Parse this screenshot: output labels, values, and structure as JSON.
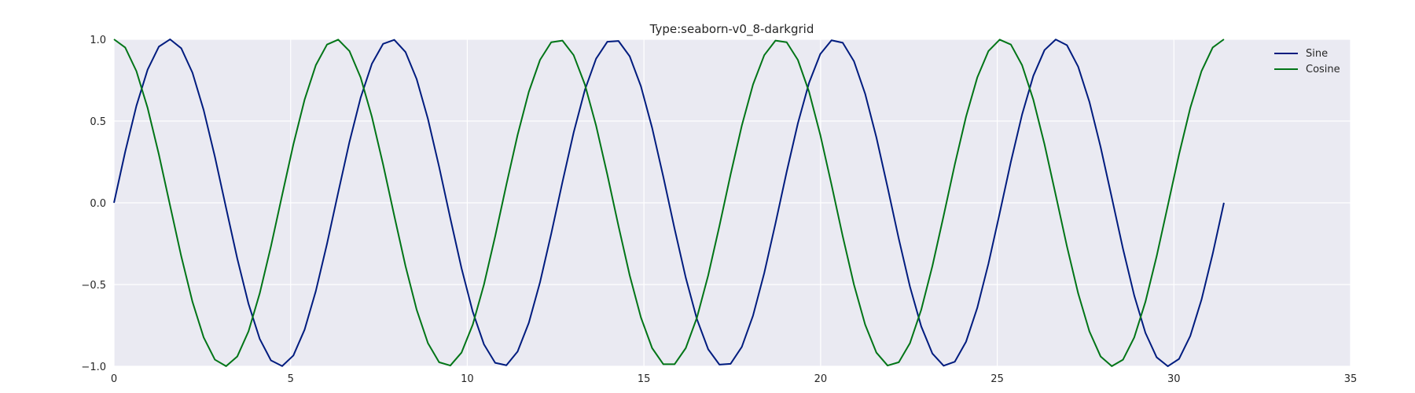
{
  "chart_data": {
    "type": "line",
    "title": "Type:seaborn-v0_8-darkgrid",
    "xlabel": "",
    "ylabel": "",
    "xlim": [
      0,
      35
    ],
    "ylim": [
      -1.0,
      1.0
    ],
    "xticks": [
      0,
      5,
      10,
      15,
      20,
      25,
      30,
      35
    ],
    "xtick_labels": [
      "0",
      "5",
      "10",
      "15",
      "20",
      "25",
      "30",
      "35"
    ],
    "yticks": [
      -1.0,
      -0.5,
      0.0,
      0.5,
      1.0
    ],
    "ytick_labels": [
      "−1.0",
      "−0.5",
      "0.0",
      "0.5",
      "1.0"
    ],
    "grid": true,
    "legend_position": "top-right",
    "x_domain": [
      0,
      31.4159
    ],
    "num_points": 100,
    "series": [
      {
        "name": "Sine",
        "function": "sin",
        "color": "#001c7f"
      },
      {
        "name": "Cosine",
        "function": "cos",
        "color": "#017517"
      }
    ],
    "colors": {
      "axes_background": "#eaeaf2",
      "grid": "#ffffff",
      "text": "#262626"
    }
  }
}
